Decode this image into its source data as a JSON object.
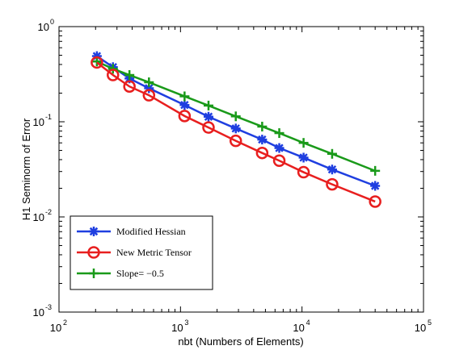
{
  "chart_data": {
    "type": "line",
    "xlabel": "nbt (Numbers of Elements)",
    "ylabel": "H1 Seminorm of Error",
    "xscale": "log",
    "yscale": "log",
    "xlim": [
      100,
      100000
    ],
    "ylim": [
      0.001,
      1
    ],
    "x_ticks": [
      {
        "value": 100,
        "base": "10",
        "exp": "2"
      },
      {
        "value": 1000,
        "base": "10",
        "exp": "3"
      },
      {
        "value": 10000,
        "base": "10",
        "exp": "4"
      },
      {
        "value": 100000,
        "base": "10",
        "exp": "5"
      }
    ],
    "y_ticks": [
      {
        "value": 0.001,
        "base": "10",
        "exp": "-3"
      },
      {
        "value": 0.01,
        "base": "10",
        "exp": "-2"
      },
      {
        "value": 0.1,
        "base": "10",
        "exp": "-1"
      },
      {
        "value": 1,
        "base": "10",
        "exp": "0"
      }
    ],
    "grid": false,
    "legend_position": "bottom-left",
    "series": [
      {
        "name": "Modified Hessian",
        "color": "#1f3fe0",
        "marker": "asterisk",
        "x": [
          205,
          278,
          380,
          550,
          1080,
          1700,
          2850,
          4700,
          6500,
          10300,
          17700,
          40000
        ],
        "y": [
          0.49,
          0.375,
          0.285,
          0.225,
          0.15,
          0.113,
          0.085,
          0.065,
          0.053,
          0.042,
          0.0315,
          0.0212
        ]
      },
      {
        "name": "New Metric Tensor",
        "color": "#e81f1f",
        "marker": "circle",
        "x": [
          205,
          278,
          380,
          550,
          1080,
          1700,
          2850,
          4700,
          6500,
          10300,
          17700,
          40000
        ],
        "y": [
          0.42,
          0.31,
          0.235,
          0.19,
          0.115,
          0.087,
          0.063,
          0.047,
          0.039,
          0.0295,
          0.022,
          0.0145
        ]
      },
      {
        "name": "Slope= −0.5",
        "color": "#1a9a1a",
        "marker": "plus",
        "x": [
          205,
          278,
          380,
          550,
          1080,
          1700,
          2850,
          4700,
          6500,
          10300,
          17700,
          40000
        ],
        "y": [
          0.43,
          0.36,
          0.31,
          0.26,
          0.185,
          0.148,
          0.114,
          0.089,
          0.076,
          0.06,
          0.046,
          0.0305
        ]
      }
    ]
  }
}
